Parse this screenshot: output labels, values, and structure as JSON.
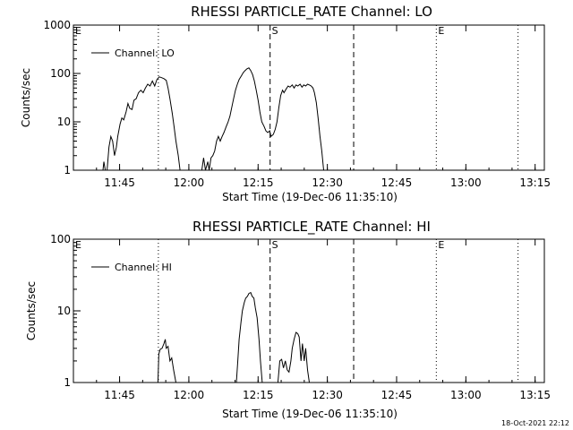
{
  "timestamp": "18-Oct-2021 22:12",
  "colors": {
    "background": "#ffffff",
    "foreground": "#000000"
  },
  "chart_data": [
    {
      "type": "line",
      "title": "RHESSI PARTICLE_RATE Channel: LO",
      "xlabel": "Start Time (19-Dec-06 11:35:10)",
      "ylabel": "Counts/sec",
      "yscale": "log",
      "xlim": [
        "11:35",
        "13:17"
      ],
      "ylim": [
        1,
        1000
      ],
      "xticks": [
        "11:45",
        "12:00",
        "12:15",
        "12:30",
        "12:45",
        "13:00",
        "13:15"
      ],
      "yticks": [
        "1",
        "10",
        "100",
        "1000"
      ],
      "legend": {
        "entries": [
          "Channel: LO"
        ],
        "placement": "top-left"
      },
      "markers": [
        {
          "label": "E",
          "time": "11:35",
          "style": "none"
        },
        {
          "label": "",
          "time": "11:53.4",
          "style": "dotted"
        },
        {
          "label": "S",
          "time": "12:17.6",
          "style": "dashed"
        },
        {
          "label": "",
          "time": "12:35.7",
          "style": "dashed"
        },
        {
          "label": "E",
          "time": "12:53.6",
          "style": "dotted"
        },
        {
          "label": "",
          "time": "13:11.3",
          "style": "dotted"
        }
      ],
      "series": [
        {
          "values": [
            [
              [
                41.4,
                1
              ],
              [
                41.6,
                1.5
              ],
              [
                41.9,
                1
              ],
              [
                42.3,
                1
              ],
              [
                42.7,
                3
              ],
              [
                43.1,
                5
              ],
              [
                43.5,
                4
              ],
              [
                43.9,
                2
              ],
              [
                44.3,
                3
              ],
              [
                44.6,
                5
              ],
              [
                45.1,
                9
              ],
              [
                45.5,
                12
              ],
              [
                45.9,
                11
              ],
              [
                46.4,
                16
              ],
              [
                46.8,
                24
              ],
              [
                47.2,
                19
              ],
              [
                47.7,
                18
              ],
              [
                48.1,
                28
              ],
              [
                48.6,
                30
              ],
              [
                49.1,
                40
              ],
              [
                49.6,
                45
              ],
              [
                50.1,
                40
              ],
              [
                50.6,
                50
              ],
              [
                51.1,
                60
              ],
              [
                51.6,
                55
              ],
              [
                52.1,
                70
              ],
              [
                52.6,
                55
              ],
              [
                53.1,
                75
              ],
              [
                53.6,
                85
              ],
              [
                54.1,
                82
              ],
              [
                54.6,
                78
              ],
              [
                55.1,
                72
              ],
              [
                55.5,
                50
              ],
              [
                55.9,
                30
              ],
              [
                56.4,
                15
              ],
              [
                56.8,
                8
              ],
              [
                57.2,
                4
              ],
              [
                57.7,
                2
              ],
              [
                58.1,
                1
              ]
            ],
            [
              [
                62.8,
                1
              ],
              [
                63.2,
                1.8
              ],
              [
                63.6,
                1
              ],
              [
                64.1,
                1.5
              ],
              [
                64.4,
                1
              ],
              [
                64.8,
                1.8
              ],
              [
                65.2,
                2
              ],
              [
                65.6,
                2.5
              ],
              [
                66,
                4
              ],
              [
                66.4,
                5
              ],
              [
                66.8,
                4
              ],
              [
                67.2,
                5
              ],
              [
                67.6,
                6
              ],
              [
                68.1,
                8
              ],
              [
                68.5,
                10
              ],
              [
                68.9,
                13
              ],
              [
                69.3,
                20
              ],
              [
                69.7,
                30
              ],
              [
                70.1,
                45
              ],
              [
                70.5,
                60
              ],
              [
                70.9,
                75
              ],
              [
                71.4,
                90
              ],
              [
                71.8,
                105
              ],
              [
                72.2,
                115
              ],
              [
                72.6,
                125
              ],
              [
                73,
                130
              ],
              [
                73.4,
                115
              ],
              [
                73.8,
                95
              ],
              [
                74.2,
                70
              ],
              [
                74.6,
                45
              ],
              [
                75,
                28
              ],
              [
                75.4,
                16
              ],
              [
                75.8,
                10
              ],
              [
                76.3,
                8
              ],
              [
                76.7,
                6.5
              ],
              [
                77.1,
                6
              ],
              [
                77.5,
                6.5
              ],
              [
                77.8,
                5
              ],
              [
                78.3,
                5.5
              ],
              [
                78.7,
                7
              ],
              [
                79.1,
                10
              ],
              [
                79.5,
                20
              ],
              [
                79.9,
                35
              ],
              [
                80.3,
                45
              ],
              [
                80.6,
                40
              ],
              [
                81.1,
                48
              ],
              [
                81.5,
                55
              ],
              [
                81.9,
                52
              ],
              [
                82.4,
                58
              ],
              [
                82.8,
                50
              ],
              [
                83.2,
                58
              ],
              [
                83.6,
                55
              ],
              [
                84.1,
                60
              ],
              [
                84.5,
                52
              ],
              [
                84.9,
                58
              ],
              [
                85.3,
                55
              ],
              [
                85.7,
                60
              ],
              [
                86.1,
                58
              ],
              [
                86.5,
                55
              ],
              [
                86.9,
                50
              ],
              [
                87.2,
                40
              ],
              [
                87.6,
                25
              ],
              [
                88,
                12
              ],
              [
                88.4,
                5
              ],
              [
                88.8,
                2.5
              ],
              [
                89.2,
                1
              ]
            ]
          ]
        }
      ]
    },
    {
      "type": "line",
      "title": "RHESSI PARTICLE_RATE Channel: HI",
      "xlabel": "Start Time (19-Dec-06 11:35:10)",
      "ylabel": "Counts/sec",
      "yscale": "log",
      "xlim": [
        "11:35",
        "13:17"
      ],
      "ylim": [
        1,
        100
      ],
      "xticks": [
        "11:45",
        "12:00",
        "12:15",
        "12:30",
        "12:45",
        "13:00",
        "13:15"
      ],
      "yticks": [
        "1",
        "10",
        "100"
      ],
      "legend": {
        "entries": [
          "Channel: HI"
        ],
        "placement": "top-left"
      },
      "markers": [
        {
          "label": "E",
          "time": "11:35",
          "style": "none"
        },
        {
          "label": "",
          "time": "11:53.4",
          "style": "dotted"
        },
        {
          "label": "S",
          "time": "12:17.6",
          "style": "dashed"
        },
        {
          "label": "",
          "time": "12:35.7",
          "style": "dashed"
        },
        {
          "label": "E",
          "time": "12:53.6",
          "style": "dotted"
        },
        {
          "label": "",
          "time": "13:11.3",
          "style": "dotted"
        }
      ],
      "series": [
        {
          "values": [
            [
              [
                53.3,
                1
              ],
              [
                53.5,
                2.5
              ],
              [
                53.8,
                2.9
              ],
              [
                54.2,
                3
              ],
              [
                54.6,
                3.5
              ],
              [
                54.9,
                4
              ],
              [
                55.1,
                3
              ],
              [
                55.5,
                3.2
              ],
              [
                55.9,
                2
              ],
              [
                56.3,
                2.2
              ],
              [
                56.7,
                1.5
              ],
              [
                57.2,
                1
              ]
            ],
            [
              [
                70.3,
                1
              ],
              [
                70.6,
                2
              ],
              [
                70.9,
                4
              ],
              [
                71.3,
                7
              ],
              [
                71.6,
                10
              ],
              [
                72,
                13
              ],
              [
                72.3,
                15
              ],
              [
                72.7,
                16
              ],
              [
                73,
                17.5
              ],
              [
                73.4,
                18
              ],
              [
                73.7,
                16
              ],
              [
                74.1,
                15
              ],
              [
                74.4,
                11
              ],
              [
                74.8,
                8
              ],
              [
                75.2,
                4
              ],
              [
                75.5,
                2
              ],
              [
                75.9,
                1
              ]
            ],
            [
              [
                79.3,
                1
              ],
              [
                79.7,
                2
              ],
              [
                80.1,
                2.1
              ],
              [
                80.5,
                1.6
              ],
              [
                80.9,
                2
              ],
              [
                81.3,
                1.5
              ],
              [
                81.7,
                1.4
              ],
              [
                82.1,
                2
              ],
              [
                82.4,
                3
              ],
              [
                82.8,
                4
              ],
              [
                83.2,
                5
              ],
              [
                83.6,
                4.8
              ],
              [
                83.9,
                4.3
              ],
              [
                84.3,
                2
              ],
              [
                84.6,
                3.5
              ],
              [
                85,
                2
              ],
              [
                85.3,
                3
              ],
              [
                85.7,
                1.5
              ],
              [
                86.1,
                1
              ]
            ]
          ]
        }
      ]
    }
  ]
}
